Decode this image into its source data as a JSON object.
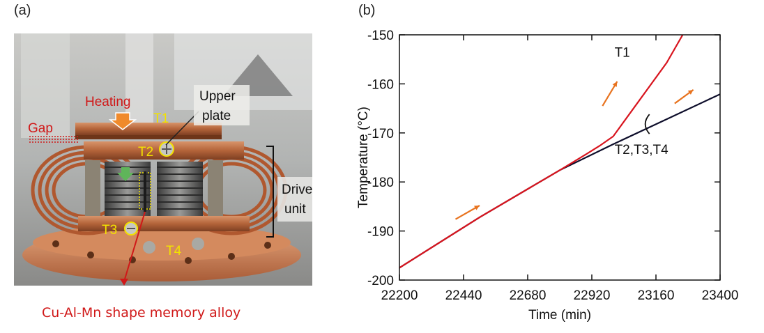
{
  "panels": {
    "a_label": "(a)",
    "b_label": "(b)"
  },
  "photo": {
    "labels": {
      "heating": "Heating",
      "gap": "Gap",
      "upper_plate_line1": "Upper",
      "upper_plate_line2": "plate",
      "t1": "T1",
      "t2": "T2",
      "t3": "T3",
      "t4": "T4",
      "drive_unit_line1": "Drive",
      "drive_unit_line2": "unit"
    },
    "caption": "Cu-Al-Mn shape memory alloy",
    "colors": {
      "label_red": "#d01818",
      "label_yellow": "#f2e200",
      "copper": "#b8663e",
      "arrow_orange": "#f08a2c",
      "arrow_green": "#5fb55a"
    }
  },
  "chart_data": {
    "type": "line",
    "xlabel": "Time (min)",
    "ylabel": "Temperature (°C)",
    "xlim": [
      22200,
      23400
    ],
    "ylim": [
      -200,
      -150
    ],
    "x_ticks": [
      22200,
      22440,
      22680,
      22920,
      23160,
      23400
    ],
    "y_ticks": [
      -150,
      -160,
      -170,
      -180,
      -190,
      -200
    ],
    "series": [
      {
        "name": "T1",
        "color": "#d8141e",
        "x": [
          22200,
          22500,
          22800,
          22900,
          22950,
          23000,
          23100,
          23200,
          23260
        ],
        "y": [
          -197.5,
          -187.2,
          -177.6,
          -174.3,
          -172.6,
          -170.7,
          -163.2,
          -155.7,
          -150
        ]
      },
      {
        "name": "T2,T3,T4",
        "color": "#0d0d2a",
        "x": [
          22200,
          22500,
          22800,
          23000,
          23200,
          23400
        ],
        "y": [
          -197.5,
          -187.2,
          -177.6,
          -172.3,
          -167.2,
          -162.1
        ]
      }
    ],
    "annotations": [
      {
        "text": "T1",
        "x": 23005,
        "y": -154.5
      },
      {
        "text": "T2,T3,T4",
        "x": 23005,
        "y": -174.3
      }
    ],
    "arrow_color": "#e8731f"
  }
}
